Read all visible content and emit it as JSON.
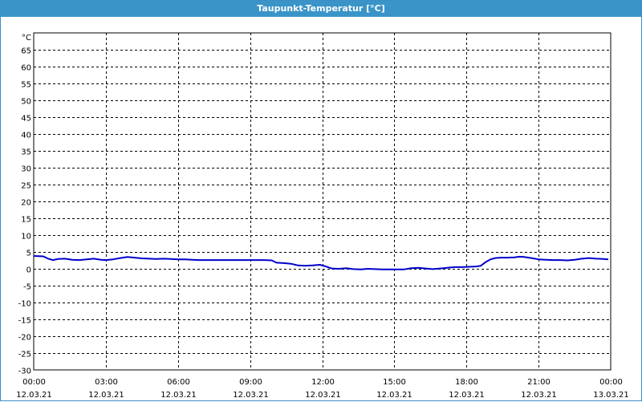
{
  "window": {
    "title": "Taupunkt-Temperatur [°C]"
  },
  "colors": {
    "titlebar": "#3b94c8",
    "series": "#0000cc",
    "grid": "#000000"
  },
  "chart_data": {
    "type": "line",
    "title": "Taupunkt-Temperatur [°C]",
    "ylabel": "°C",
    "xlabel": "",
    "ylim": [
      -30,
      70
    ],
    "yticks": [
      65,
      60,
      55,
      50,
      45,
      40,
      35,
      30,
      25,
      20,
      15,
      10,
      5,
      0,
      -5,
      -10,
      -15,
      -20,
      -25,
      -30
    ],
    "xlim": [
      0,
      24
    ],
    "xticks": [
      {
        "x": 0,
        "time": "00:00",
        "date": "12.03.21"
      },
      {
        "x": 3,
        "time": "03:00",
        "date": "12.03.21"
      },
      {
        "x": 6,
        "time": "06:00",
        "date": "12.03.21"
      },
      {
        "x": 9,
        "time": "09:00",
        "date": "12.03.21"
      },
      {
        "x": 12,
        "time": "12:00",
        "date": "12.03.21"
      },
      {
        "x": 15,
        "time": "15:00",
        "date": "12.03.21"
      },
      {
        "x": 18,
        "time": "18:00",
        "date": "12.03.21"
      },
      {
        "x": 21,
        "time": "21:00",
        "date": "12.03.21"
      },
      {
        "x": 24,
        "time": "00:00",
        "date": "13.03.21"
      }
    ],
    "grid": true,
    "series": [
      {
        "x": [
          0,
          0.4,
          0.6,
          0.8,
          1.0,
          1.3,
          1.6,
          1.9,
          2.2,
          2.5,
          2.8,
          3.0,
          3.3,
          3.6,
          3.9,
          4.2,
          4.5,
          4.8,
          5.1,
          5.4,
          5.7,
          6.0,
          6.3,
          6.6,
          6.9,
          7.2,
          7.5,
          7.8,
          8.1,
          8.4,
          8.7,
          9.0,
          9.3,
          9.6,
          9.9,
          10.1,
          10.4,
          10.7,
          11.0,
          11.3,
          11.6,
          11.9,
          12.1,
          12.4,
          12.7,
          13.0,
          13.3,
          13.6,
          13.9,
          14.2,
          14.5,
          14.8,
          15.1,
          15.4,
          15.7,
          16.0,
          16.3,
          16.6,
          16.9,
          17.2,
          17.5,
          17.8,
          18.1,
          18.4,
          18.6,
          18.8,
          19.0,
          19.2,
          19.4,
          19.7,
          20.0,
          20.2,
          20.4,
          20.7,
          21.0,
          21.3,
          21.6,
          21.9,
          22.2,
          22.5,
          22.8,
          23.1,
          23.4,
          23.7,
          23.9
        ],
        "y": [
          3.8,
          3.7,
          3.0,
          2.6,
          2.9,
          3.0,
          2.7,
          2.6,
          2.8,
          3.0,
          2.7,
          2.6,
          2.8,
          3.2,
          3.5,
          3.3,
          3.1,
          3.0,
          2.9,
          3.0,
          2.9,
          2.8,
          2.8,
          2.7,
          2.6,
          2.6,
          2.6,
          2.6,
          2.6,
          2.6,
          2.6,
          2.6,
          2.6,
          2.6,
          2.5,
          1.8,
          1.7,
          1.5,
          1.0,
          0.9,
          1.0,
          1.2,
          0.8,
          0.1,
          0.0,
          0.2,
          -0.1,
          -0.2,
          0.0,
          -0.1,
          -0.2,
          -0.2,
          -0.2,
          -0.2,
          0.2,
          0.3,
          0.1,
          -0.1,
          0.1,
          0.3,
          0.5,
          0.5,
          0.6,
          0.7,
          0.9,
          2.0,
          2.8,
          3.2,
          3.3,
          3.3,
          3.4,
          3.6,
          3.5,
          3.2,
          2.8,
          2.7,
          2.6,
          2.6,
          2.5,
          2.7,
          3.0,
          3.2,
          3.0,
          2.9,
          2.8
        ]
      }
    ]
  }
}
